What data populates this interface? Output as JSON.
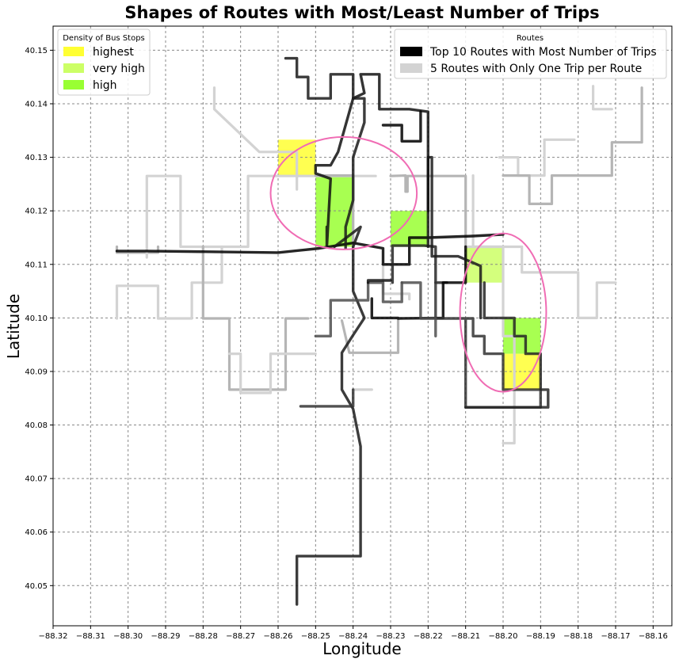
{
  "chart_data": {
    "type": "line",
    "title": "Shapes of Routes with Most/Least Number of Trips",
    "xlabel": "Longitude",
    "ylabel": "Latitude",
    "xlim": [
      -88.32,
      -88.155
    ],
    "ylim": [
      40.0425,
      40.1545
    ],
    "x_ticks": [
      "−88.32",
      "−88.31",
      "−88.30",
      "−88.29",
      "−88.28",
      "−88.27",
      "−88.26",
      "−88.25",
      "−88.24",
      "−88.23",
      "−88.22",
      "−88.21",
      "−88.20",
      "−88.19",
      "−88.18",
      "−88.17",
      "−88.16"
    ],
    "y_ticks": [
      "40.05",
      "40.06",
      "40.07",
      "40.08",
      "40.09",
      "40.10",
      "40.11",
      "40.12",
      "40.13",
      "40.14",
      "40.15"
    ],
    "grid": true,
    "density_legend": {
      "title": "Density of Bus Stops",
      "placement": "top-left",
      "entries": [
        {
          "label": "highest",
          "color": "#ffff33"
        },
        {
          "label": "very high",
          "color": "#ccff66"
        },
        {
          "label": "high",
          "color": "#99ff33"
        }
      ]
    },
    "routes_legend": {
      "title": "Routes",
      "placement": "top-right",
      "entries": [
        {
          "label": "Top 10 Routes with Most Number of Trips",
          "color": "#000000"
        },
        {
          "label": "5 Routes with Only One Trip per Route",
          "color": "#d3d3d3"
        }
      ]
    },
    "density_cells": [
      {
        "x0": -88.26,
        "x1": -88.25,
        "y0": 40.1265,
        "y1": 40.1333,
        "level": "highest"
      },
      {
        "x0": -88.25,
        "x1": -88.24,
        "y0": 40.1133,
        "y1": 40.1265,
        "level": "high"
      },
      {
        "x0": -88.23,
        "x1": -88.22,
        "y0": 40.1133,
        "y1": 40.12,
        "level": "high"
      },
      {
        "x0": -88.21,
        "x1": -88.2,
        "y0": 40.1066,
        "y1": 40.1133,
        "level": "very high"
      },
      {
        "x0": -88.2,
        "x1": -88.19,
        "y0": 40.0933,
        "y1": 40.1,
        "level": "high"
      },
      {
        "x0": -88.2,
        "x1": -88.19,
        "y0": 40.0866,
        "y1": 40.0933,
        "level": "highest"
      }
    ],
    "ellipses": [
      {
        "cx": -88.2425,
        "cy": 40.1233,
        "rx": 0.0195,
        "ry": 0.0105,
        "color": "#f06cb4"
      },
      {
        "cx": -88.2,
        "cy": 40.101,
        "rx": 0.0115,
        "ry": 0.0148,
        "color": "#f06cb4"
      }
    ],
    "series": [
      {
        "group": "least",
        "points": [
          [
            -88.303,
            40.1133
          ],
          [
            -88.303,
            40.1122
          ],
          [
            -88.292,
            40.1122
          ],
          [
            -88.292,
            40.1133
          ]
        ]
      },
      {
        "group": "least",
        "points": [
          [
            -88.303,
            40.0999
          ],
          [
            -88.303,
            40.106
          ],
          [
            -88.292,
            40.106
          ],
          [
            -88.292,
            40.0999
          ],
          [
            -88.283,
            40.0999
          ],
          [
            -88.283,
            40.1066
          ],
          [
            -88.275,
            40.1066
          ],
          [
            -88.275,
            40.1133
          ]
        ]
      },
      {
        "group": "least",
        "points": [
          [
            -88.295,
            40.1113
          ],
          [
            -88.295,
            40.1265
          ],
          [
            -88.286,
            40.1265
          ],
          [
            -88.286,
            40.1133
          ],
          [
            -88.268,
            40.1133
          ],
          [
            -88.268,
            40.1265
          ],
          [
            -88.234,
            40.1265
          ]
        ]
      },
      {
        "group": "least",
        "points": [
          [
            -88.28,
            40.1133
          ],
          [
            -88.28,
            40.0999
          ],
          [
            -88.273,
            40.0999
          ],
          [
            -88.273,
            40.0866
          ],
          [
            -88.258,
            40.0866
          ],
          [
            -88.258,
            40.0999
          ],
          [
            -88.252,
            40.0999
          ]
        ]
      },
      {
        "group": "least",
        "points": [
          [
            -88.273,
            40.0933
          ],
          [
            -88.27,
            40.0933
          ],
          [
            -88.27,
            40.086
          ],
          [
            -88.262,
            40.086
          ],
          [
            -88.262,
            40.0933
          ],
          [
            -88.25,
            40.0933
          ]
        ]
      },
      {
        "group": "least",
        "points": [
          [
            -88.277,
            40.143
          ],
          [
            -88.277,
            40.139
          ],
          [
            -88.265,
            40.131
          ],
          [
            -88.255,
            40.131
          ],
          [
            -88.255,
            40.124
          ]
        ]
      },
      {
        "group": "least",
        "points": [
          [
            -88.23,
            40.1265
          ],
          [
            -88.226,
            40.1266
          ],
          [
            -88.226,
            40.1236
          ],
          [
            -88.2255,
            40.1236
          ],
          [
            -88.2255,
            40.1265
          ],
          [
            -88.21,
            40.1265
          ],
          [
            -88.21,
            40.1133
          ]
        ]
      },
      {
        "group": "least",
        "points": [
          [
            -88.208,
            40.1266
          ],
          [
            -88.208,
            40.1133
          ],
          [
            -88.2,
            40.1133
          ],
          [
            -88.2,
            40.0966
          ],
          [
            -88.197,
            40.0966
          ],
          [
            -88.197,
            40.0866
          ],
          [
            -88.197,
            40.0766
          ],
          [
            -88.2,
            40.0766
          ]
        ]
      },
      {
        "group": "least",
        "points": [
          [
            -88.201,
            40.13
          ],
          [
            -88.196,
            40.13
          ],
          [
            -88.196,
            40.1266
          ],
          [
            -88.189,
            40.1266
          ],
          [
            -88.189,
            40.1333
          ],
          [
            -88.181,
            40.1333
          ]
        ]
      },
      {
        "group": "least",
        "points": [
          [
            -88.2,
            40.1266
          ],
          [
            -88.193,
            40.1266
          ],
          [
            -88.193,
            40.1213
          ],
          [
            -88.187,
            40.1213
          ],
          [
            -88.187,
            40.1266
          ],
          [
            -88.171,
            40.1266
          ],
          [
            -88.171,
            40.1328
          ],
          [
            -88.163,
            40.1328
          ],
          [
            -88.163,
            40.143
          ]
        ]
      },
      {
        "group": "least",
        "points": [
          [
            -88.176,
            40.1433
          ],
          [
            -88.176,
            40.139
          ],
          [
            -88.171,
            40.139
          ]
        ]
      },
      {
        "group": "least",
        "points": [
          [
            -88.232,
            40.11
          ],
          [
            -88.232,
            40.1045
          ],
          [
            -88.225,
            40.1045
          ],
          [
            -88.225,
            40.1035
          ]
        ]
      },
      {
        "group": "least",
        "points": [
          [
            -88.243,
            40.0995
          ],
          [
            -88.241,
            40.0935
          ],
          [
            -88.228,
            40.0935
          ],
          [
            -88.228,
            40.0999
          ]
        ]
      },
      {
        "group": "least",
        "points": [
          [
            -88.24,
            40.0866
          ],
          [
            -88.235,
            40.0866
          ]
        ]
      },
      {
        "group": "least",
        "points": [
          [
            -88.21,
            40.1133
          ],
          [
            -88.195,
            40.1133
          ],
          [
            -88.195,
            40.1085
          ],
          [
            -88.18,
            40.1085
          ],
          [
            -88.18,
            40.1
          ],
          [
            -88.175,
            40.1
          ],
          [
            -88.175,
            40.1066
          ],
          [
            -88.17,
            40.1066
          ]
        ]
      },
      {
        "group": "least",
        "points": [
          [
            -88.25,
            40.1266
          ],
          [
            -88.24,
            40.1266
          ],
          [
            -88.24,
            40.1133
          ]
        ]
      },
      {
        "group": "most",
        "points": [
          [
            -88.303,
            40.1125
          ],
          [
            -88.295,
            40.1125
          ],
          [
            -88.26,
            40.1122
          ],
          [
            -88.249,
            40.113
          ],
          [
            -88.24,
            40.114
          ],
          [
            -88.232,
            40.113
          ],
          [
            -88.232,
            40.11
          ],
          [
            -88.225,
            40.11
          ],
          [
            -88.225,
            40.115
          ],
          [
            -88.22,
            40.115
          ],
          [
            -88.208,
            40.1153
          ],
          [
            -88.2,
            40.1156
          ]
        ]
      },
      {
        "group": "most",
        "points": [
          [
            -88.255,
            40.0465
          ],
          [
            -88.255,
            40.0555
          ],
          [
            -88.238,
            40.0555
          ],
          [
            -88.238,
            40.076
          ],
          [
            -88.24,
            40.083
          ],
          [
            -88.243,
            40.0866
          ],
          [
            -88.243,
            40.0935
          ],
          [
            -88.24,
            40.0968
          ],
          [
            -88.237,
            40.1
          ],
          [
            -88.24,
            40.105
          ],
          [
            -88.24,
            40.1133
          ],
          [
            -88.238,
            40.117
          ],
          [
            -88.245,
            40.1133
          ]
        ]
      },
      {
        "group": "most",
        "points": [
          [
            -88.254,
            40.0835
          ],
          [
            -88.24,
            40.0835
          ],
          [
            -88.24,
            40.0866
          ]
        ]
      },
      {
        "group": "most",
        "points": [
          [
            -88.25,
            40.0966
          ],
          [
            -88.246,
            40.0966
          ],
          [
            -88.246,
            40.1033
          ],
          [
            -88.236,
            40.1033
          ],
          [
            -88.236,
            40.1066
          ],
          [
            -88.232,
            40.1066
          ],
          [
            -88.232,
            40.103
          ],
          [
            -88.227,
            40.103
          ],
          [
            -88.227,
            40.1066
          ]
        ]
      },
      {
        "group": "most",
        "points": [
          [
            -88.2295,
            40.1066
          ],
          [
            -88.2295,
            40.1135
          ],
          [
            -88.221,
            40.1135
          ],
          [
            -88.218,
            40.1133
          ],
          [
            -88.218,
            40.1066
          ],
          [
            -88.215,
            40.1066
          ]
        ]
      },
      {
        "group": "most",
        "points": [
          [
            -88.236,
            40.1066
          ],
          [
            -88.236,
            40.107
          ],
          [
            -88.23,
            40.107
          ]
        ]
      },
      {
        "group": "most",
        "points": [
          [
            -88.235,
            40.1036
          ],
          [
            -88.235,
            40.1
          ],
          [
            -88.228,
            40.1
          ],
          [
            -88.228,
            40.0999
          ],
          [
            -88.216,
            40.1
          ],
          [
            -88.216,
            40.1066
          ],
          [
            -88.21,
            40.1066
          ],
          [
            -88.21,
            40.1133
          ]
        ]
      },
      {
        "group": "most",
        "points": [
          [
            -88.22,
            40.1133
          ],
          [
            -88.22,
            40.13
          ],
          [
            -88.219,
            40.13
          ],
          [
            -88.219,
            40.1115
          ],
          [
            -88.212,
            40.1115
          ],
          [
            -88.206,
            40.1097
          ],
          [
            -88.206,
            40.1
          ]
        ]
      },
      {
        "group": "most",
        "points": [
          [
            -88.218,
            40.1066
          ],
          [
            -88.218,
            40.0999
          ],
          [
            -88.208,
            40.0999
          ],
          [
            -88.208,
            40.0966
          ],
          [
            -88.205,
            40.0966
          ],
          [
            -88.205,
            40.0933
          ],
          [
            -88.2,
            40.0933
          ],
          [
            -88.2,
            40.0866
          ],
          [
            -88.19,
            40.0866
          ],
          [
            -88.19,
            40.0833
          ],
          [
            -88.21,
            40.0833
          ],
          [
            -88.21,
            40.0999
          ]
        ]
      },
      {
        "group": "most",
        "points": [
          [
            -88.227,
            40.1066
          ],
          [
            -88.222,
            40.1066
          ],
          [
            -88.222,
            40.0999
          ],
          [
            -88.218,
            40.0999
          ],
          [
            -88.218,
            40.0966
          ]
        ]
      },
      {
        "group": "most",
        "points": [
          [
            -88.205,
            40.1066
          ],
          [
            -88.205,
            40.1
          ],
          [
            -88.197,
            40.1
          ],
          [
            -88.197,
            40.0966
          ],
          [
            -88.194,
            40.0966
          ],
          [
            -88.194,
            40.0933
          ],
          [
            -88.19,
            40.0933
          ],
          [
            -88.19,
            40.0866
          ],
          [
            -88.188,
            40.0866
          ],
          [
            -88.188,
            40.0833
          ],
          [
            -88.21,
            40.0833
          ]
        ]
      },
      {
        "group": "most",
        "points": [
          [
            -88.247,
            40.117
          ],
          [
            -88.247,
            40.1133
          ],
          [
            -88.246,
            40.126
          ],
          [
            -88.25,
            40.127
          ],
          [
            -88.25,
            40.1285
          ],
          [
            -88.246,
            40.1285
          ],
          [
            -88.244,
            40.131
          ],
          [
            -88.242,
            40.136
          ],
          [
            -88.24,
            40.141
          ],
          [
            -88.237,
            40.142
          ],
          [
            -88.238,
            40.1455
          ],
          [
            -88.233,
            40.1455
          ],
          [
            -88.233,
            40.139
          ],
          [
            -88.225,
            40.139
          ],
          [
            -88.22,
            40.1385
          ],
          [
            -88.22,
            40.12
          ]
        ]
      },
      {
        "group": "most",
        "points": [
          [
            -88.232,
            40.136
          ],
          [
            -88.227,
            40.136
          ],
          [
            -88.227,
            40.133
          ],
          [
            -88.222,
            40.133
          ],
          [
            -88.222,
            40.1385
          ]
        ]
      },
      {
        "group": "most",
        "points": [
          [
            -88.258,
            40.1485
          ],
          [
            -88.255,
            40.1485
          ],
          [
            -88.255,
            40.145
          ],
          [
            -88.252,
            40.145
          ],
          [
            -88.252,
            40.141
          ],
          [
            -88.246,
            40.141
          ],
          [
            -88.246,
            40.1455
          ],
          [
            -88.24,
            40.1455
          ],
          [
            -88.24,
            40.141
          ],
          [
            -88.237,
            40.141
          ],
          [
            -88.237,
            40.1365
          ],
          [
            -88.24,
            40.13
          ],
          [
            -88.24,
            40.122
          ],
          [
            -88.242,
            40.117
          ],
          [
            -88.242,
            40.113
          ]
        ]
      }
    ]
  }
}
